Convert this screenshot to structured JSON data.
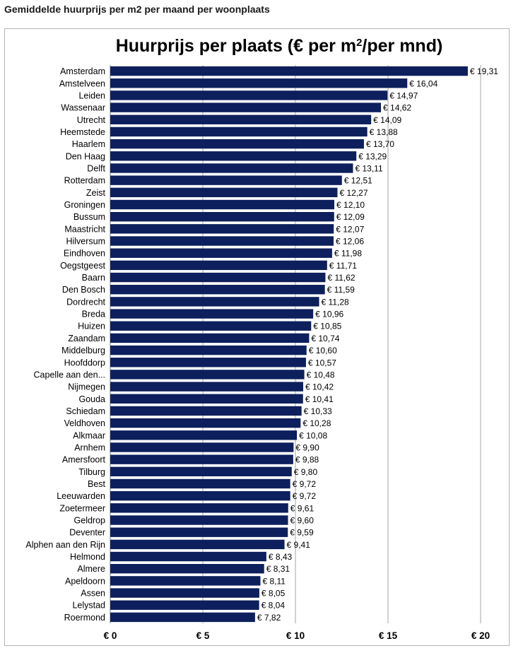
{
  "heading": "Gemiddelde huurprijs per m2 per maand per woonplaats",
  "chart_data": {
    "type": "bar",
    "orientation": "horizontal",
    "title": "Huurprijs per plaats  (€ per m²/per mnd)",
    "xlabel": "",
    "ylabel": "",
    "xlim": [
      0,
      20
    ],
    "ticks": [
      0,
      5,
      10,
      15,
      20
    ],
    "tick_labels": [
      "€ 0",
      "€ 5",
      "€ 10",
      "€ 15",
      "€ 20"
    ],
    "grid": "vertical",
    "bar_color": "#0d1f5c",
    "categories": [
      "Amsterdam",
      "Amstelveen",
      "Leiden",
      "Wassenaar",
      "Utrecht",
      "Heemstede",
      "Haarlem",
      "Den Haag",
      "Delft",
      "Rotterdam",
      "Zeist",
      "Groningen",
      "Bussum",
      "Maastricht",
      "Hilversum",
      "Eindhoven",
      "Oegstgeest",
      "Baarn",
      "Den Bosch",
      "Dordrecht",
      "Breda",
      "Huizen",
      "Zaandam",
      "Middelburg",
      "Hoofddorp",
      "Capelle aan den...",
      "Nijmegen",
      "Gouda",
      "Schiedam",
      "Veldhoven",
      "Alkmaar",
      "Arnhem",
      "Amersfoort",
      "Tilburg",
      "Best",
      "Leeuwarden",
      "Zoetermeer",
      "Geldrop",
      "Deventer",
      "Alphen aan den Rijn",
      "Helmond",
      "Almere",
      "Apeldoorn",
      "Assen",
      "Lelystad",
      "Roermond"
    ],
    "values": [
      19.31,
      16.04,
      14.97,
      14.62,
      14.09,
      13.88,
      13.7,
      13.29,
      13.11,
      12.51,
      12.27,
      12.1,
      12.09,
      12.07,
      12.06,
      11.98,
      11.71,
      11.62,
      11.59,
      11.28,
      10.96,
      10.85,
      10.74,
      10.6,
      10.57,
      10.48,
      10.42,
      10.41,
      10.33,
      10.28,
      10.08,
      9.9,
      9.88,
      9.8,
      9.72,
      9.72,
      9.61,
      9.6,
      9.59,
      9.41,
      8.43,
      8.31,
      8.11,
      8.05,
      8.04,
      7.82
    ],
    "value_labels": [
      "€ 19,31",
      "€ 16,04",
      "€ 14,97",
      "€ 14,62",
      "€ 14,09",
      "€ 13,88",
      "€ 13,70",
      "€ 13,29",
      "€ 13,11",
      "€ 12,51",
      "€ 12,27",
      "€ 12,10",
      "€ 12,09",
      "€ 12,07",
      "€ 12,06",
      "€ 11,98",
      "€ 11,71",
      "€ 11,62",
      "€ 11,59",
      "€ 11,28",
      "€ 10,96",
      "€ 10,85",
      "€ 10,74",
      "€ 10,60",
      "€ 10,57",
      "€ 10,48",
      "€ 10,42",
      "€ 10,41",
      "€ 10,33",
      "€ 10,28",
      "€ 10,08",
      "€ 9,90",
      "€ 9,88",
      "€ 9,80",
      "€ 9,72",
      "€ 9,72",
      "€ 9,61",
      "€ 9,60",
      "€ 9,59",
      "€ 9,41",
      "€ 8,43",
      "€ 8,31",
      "€ 8,11",
      "€ 8,05",
      "€ 8,04",
      "€ 7,82"
    ]
  }
}
